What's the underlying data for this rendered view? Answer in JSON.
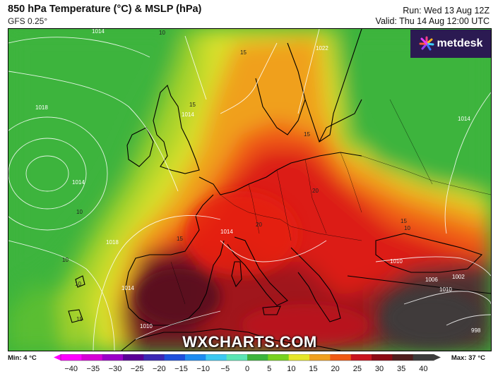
{
  "header": {
    "title": "850 hPa Temperature (°C) & MSLP (hPa)",
    "model": "GFS 0.25°",
    "run": "Run: Wed 13 Aug 12Z",
    "valid": "Valid: Thu 14 Aug 12:00 UTC"
  },
  "branding": {
    "logo": "metdesk",
    "watermark": "WXCHARTS.COM"
  },
  "legend": {
    "min": "Min: 4 °C",
    "max": "Max: 37 °C",
    "ticks": [
      "−40",
      "−35",
      "−30",
      "−25",
      "−20",
      "−15",
      "−10",
      "−5",
      "0",
      "5",
      "10",
      "15",
      "20",
      "25",
      "30",
      "35",
      "40"
    ],
    "tick_values": [
      -40,
      -35,
      -30,
      -25,
      -20,
      -15,
      -10,
      -5,
      0,
      5,
      10,
      15,
      20,
      25,
      30,
      35,
      40
    ],
    "colors": [
      "#ff00ff",
      "#d600d6",
      "#9b00c8",
      "#5a0096",
      "#3c28b4",
      "#1e50dc",
      "#1e8cf0",
      "#3cc8f0",
      "#5ae6b4",
      "#3cb43c",
      "#78d21e",
      "#e6e628",
      "#f0a01e",
      "#f05a14",
      "#c8141e",
      "#8c0a14",
      "#501e1e",
      "#3c3c3c"
    ]
  },
  "map": {
    "region": "Europe",
    "isobar_labels": [
      "1014",
      "10",
      "15",
      "1018",
      "1014",
      "15",
      "1022",
      "1014",
      "15",
      "10",
      "10",
      "10",
      "20",
      "1014",
      "1018",
      "20",
      "15",
      "1010",
      "1006",
      "1002",
      "1014",
      "1010",
      "998",
      "15",
      "10",
      "1014",
      "1010",
      "15"
    ]
  }
}
